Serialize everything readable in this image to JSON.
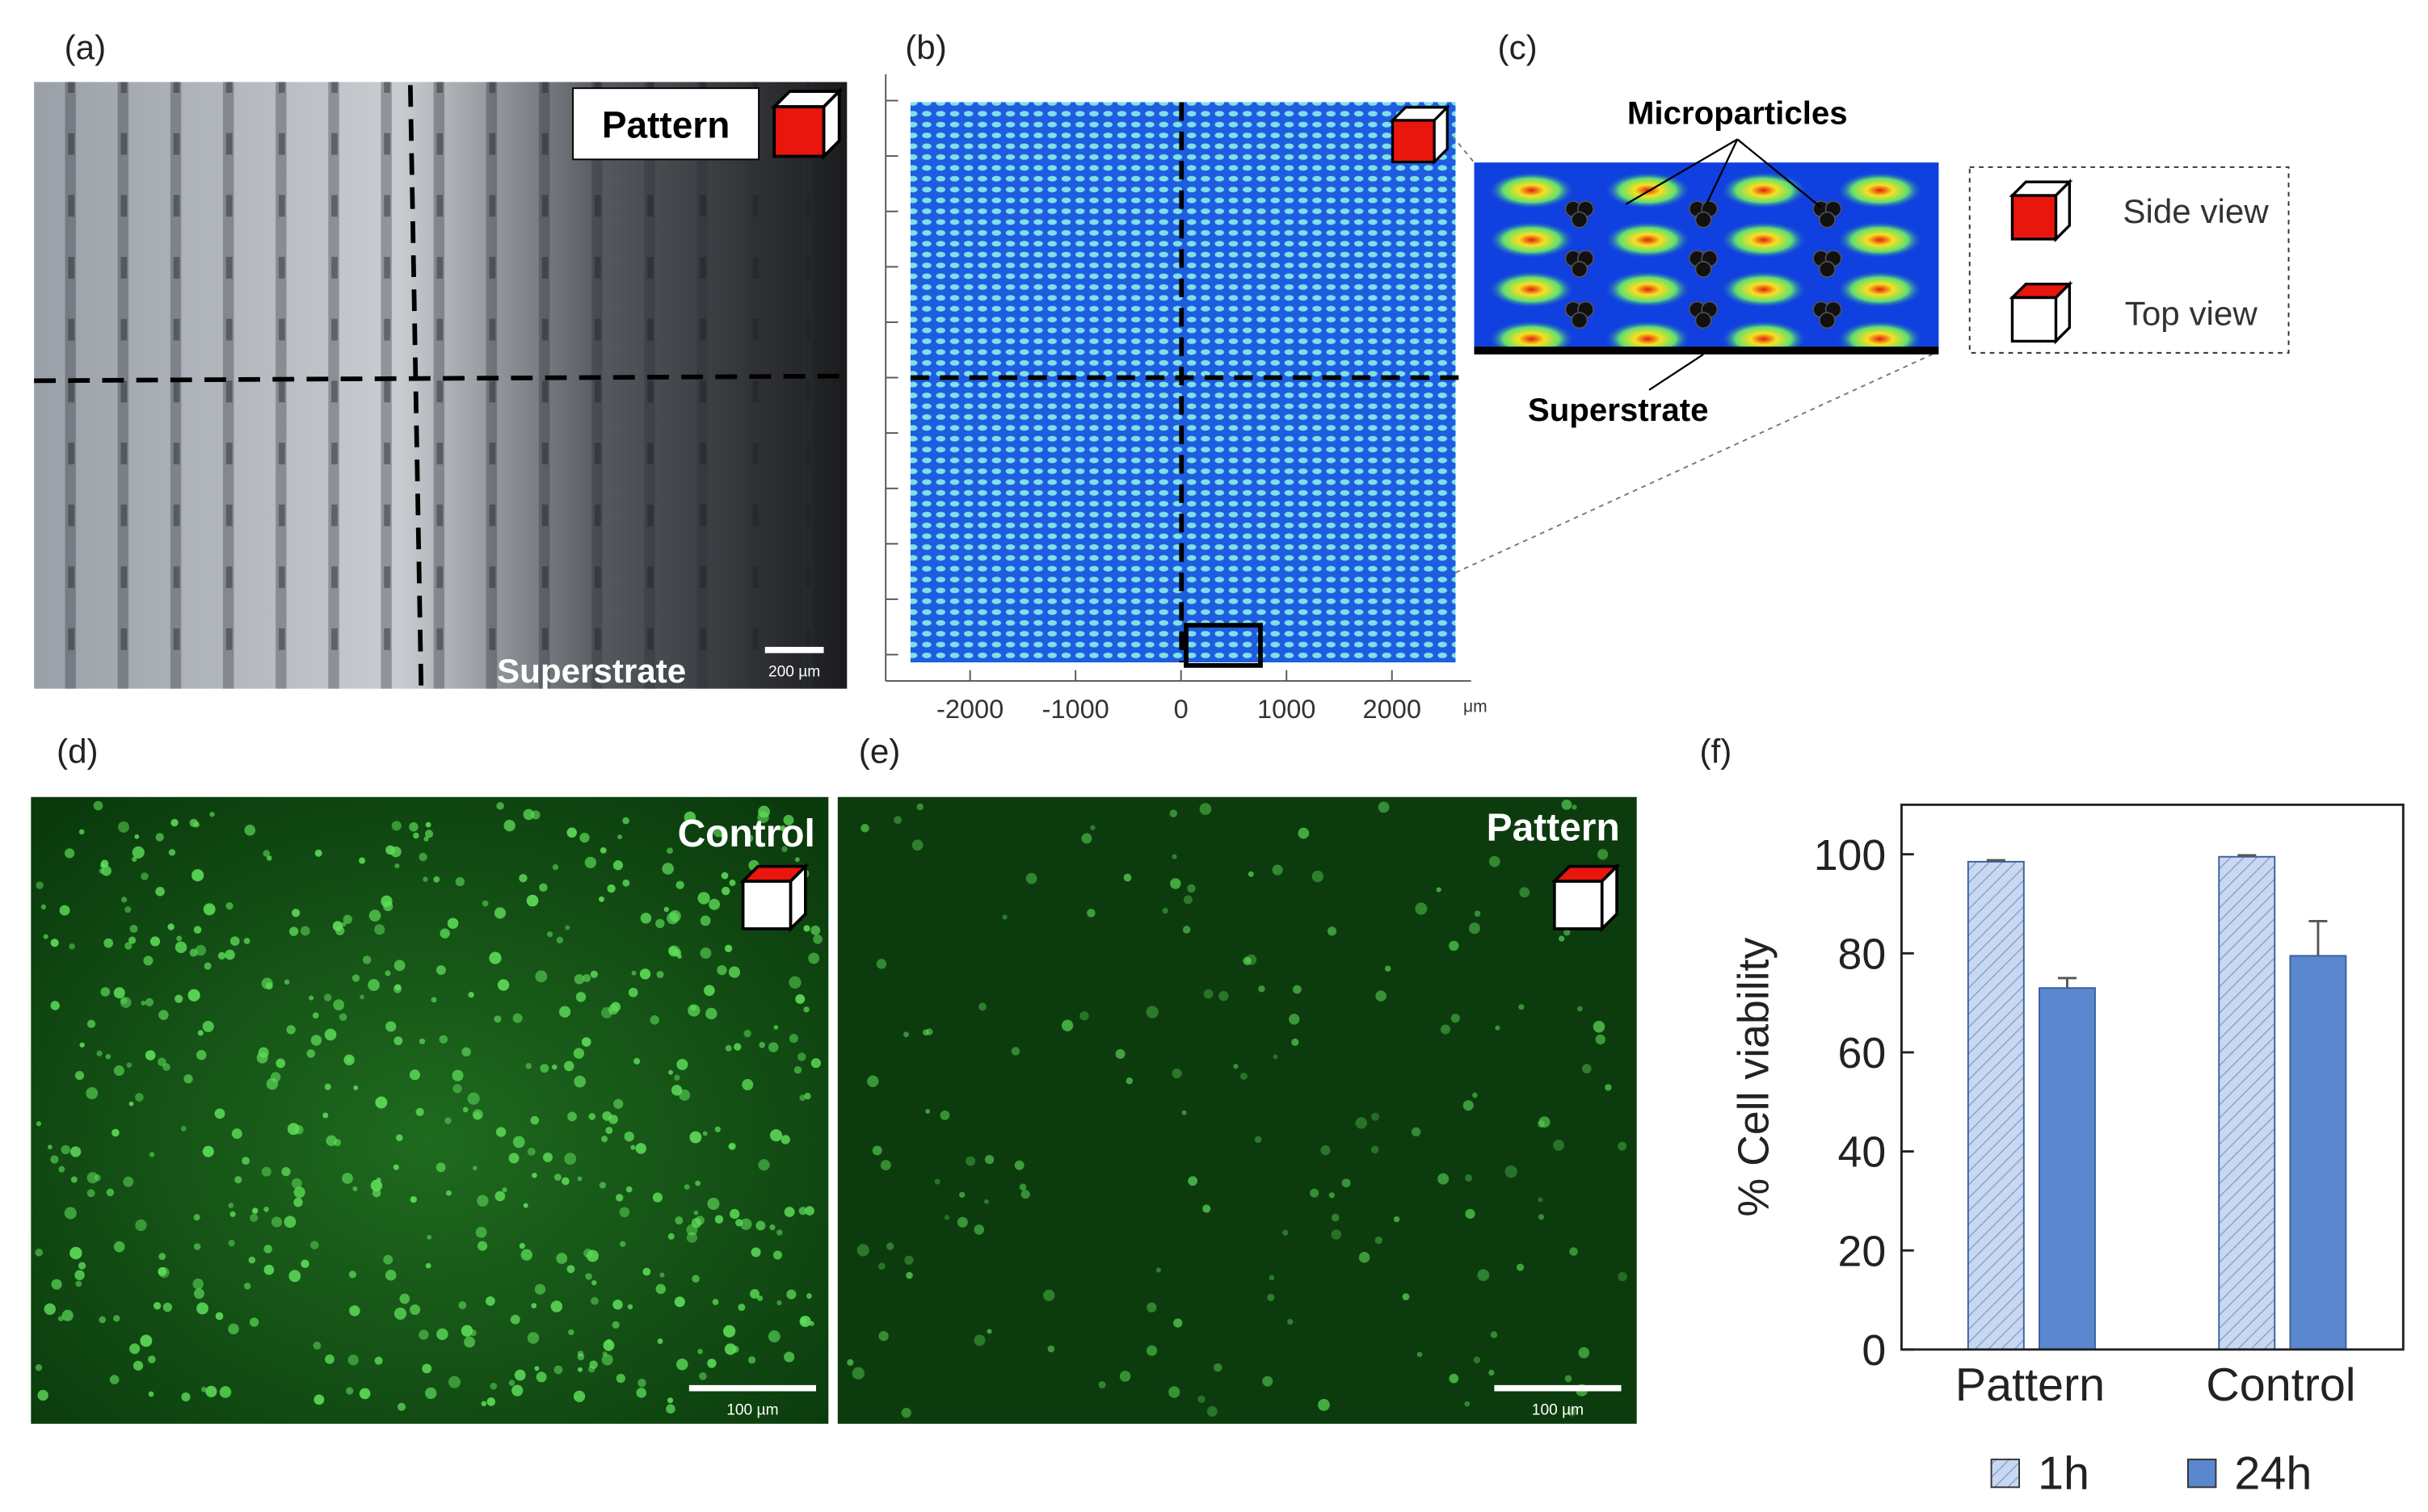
{
  "panels": {
    "a": {
      "label": "(a)",
      "tag": "Pattern",
      "caption": "Superstrate",
      "scale_bar": "200 µm"
    },
    "b": {
      "label": "(b)",
      "xlim": [
        -2800,
        2750
      ],
      "xticks": [
        -2000,
        -1000,
        0,
        1000,
        2000
      ],
      "x_unit": "μm"
    },
    "c": {
      "label": "(c)",
      "particles": "Microparticles",
      "superstrate": "Superstrate",
      "legend": [
        "Side view",
        "Top view"
      ]
    },
    "d": {
      "label": "(d)",
      "tag": "Control",
      "scale_bar": "100 µm"
    },
    "e": {
      "label": "(e)",
      "tag": "Pattern",
      "scale_bar": "100 µm"
    },
    "f": {
      "label": "(f)"
    }
  },
  "chart_data": {
    "type": "bar",
    "y_label": "% Cell viability",
    "categories": [
      "Pattern",
      "Control"
    ],
    "series": [
      {
        "name": "1h",
        "color": "#c9d8f0",
        "hatch": true,
        "values": [
          98.5,
          99.5
        ],
        "errors": [
          0.3,
          0.3
        ]
      },
      {
        "name": "24h",
        "color": "#5b87cf",
        "hatch": false,
        "values": [
          73,
          79.5
        ],
        "errors": [
          2,
          7
        ]
      }
    ],
    "ylim": [
      0,
      110
    ],
    "yticks": [
      0,
      20,
      40,
      60,
      80,
      100
    ]
  }
}
